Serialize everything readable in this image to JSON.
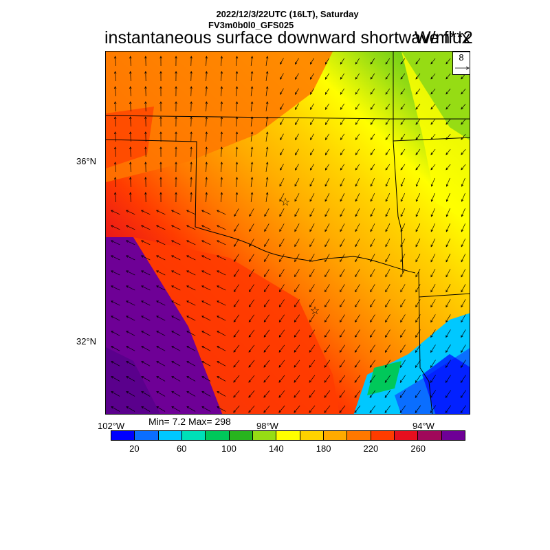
{
  "header": {
    "date_line": "2022/12/3/22UTC (16LT), Saturday",
    "model_line": "FV3m0b0l0_GFS025",
    "title": "instantaneous surface downward shortwave flux",
    "units": "W/m**2"
  },
  "map": {
    "lat_labels": [
      "36°N",
      "32°N"
    ],
    "lon_labels": [
      "102°W",
      "98°W",
      "94°W"
    ],
    "station_markers": [
      "star",
      "star"
    ],
    "vector_reference": "8"
  },
  "stats": {
    "text": "Min= 7.2 Max= 298"
  },
  "colorbar": {
    "colors": [
      "#0000ff",
      "#0a6eff",
      "#00c8ff",
      "#00e0b8",
      "#00c85a",
      "#28b41e",
      "#96dc14",
      "#ffff00",
      "#ffd200",
      "#ffaa00",
      "#ff7800",
      "#ff3c00",
      "#e60f1e",
      "#a0085a",
      "#6e0096"
    ],
    "labels": [
      "20",
      "60",
      "100",
      "140",
      "180",
      "220",
      "260"
    ]
  }
}
